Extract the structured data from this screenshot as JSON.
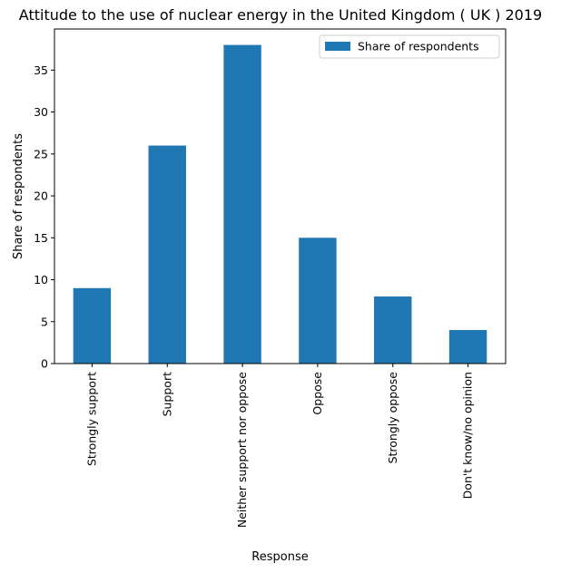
{
  "chart_data": {
    "type": "bar",
    "title": "Attitude to the use of nuclear energy in the United Kingdom ( UK ) 2019",
    "xlabel": "Response",
    "ylabel": "Share of respondents",
    "categories": [
      "Strongly support",
      "Support",
      "Neither support nor oppose",
      "Oppose",
      "Strongly oppose",
      "Don't know/no opinion"
    ],
    "series": [
      {
        "name": "Share of respondents",
        "values": [
          9,
          26,
          38,
          15,
          8,
          4
        ],
        "color": "#1f77b4"
      }
    ],
    "ylim": [
      0,
      39.9
    ],
    "yticks": [
      0,
      5,
      10,
      15,
      20,
      25,
      30,
      35
    ],
    "grid": false,
    "legend_position": "top-right"
  }
}
